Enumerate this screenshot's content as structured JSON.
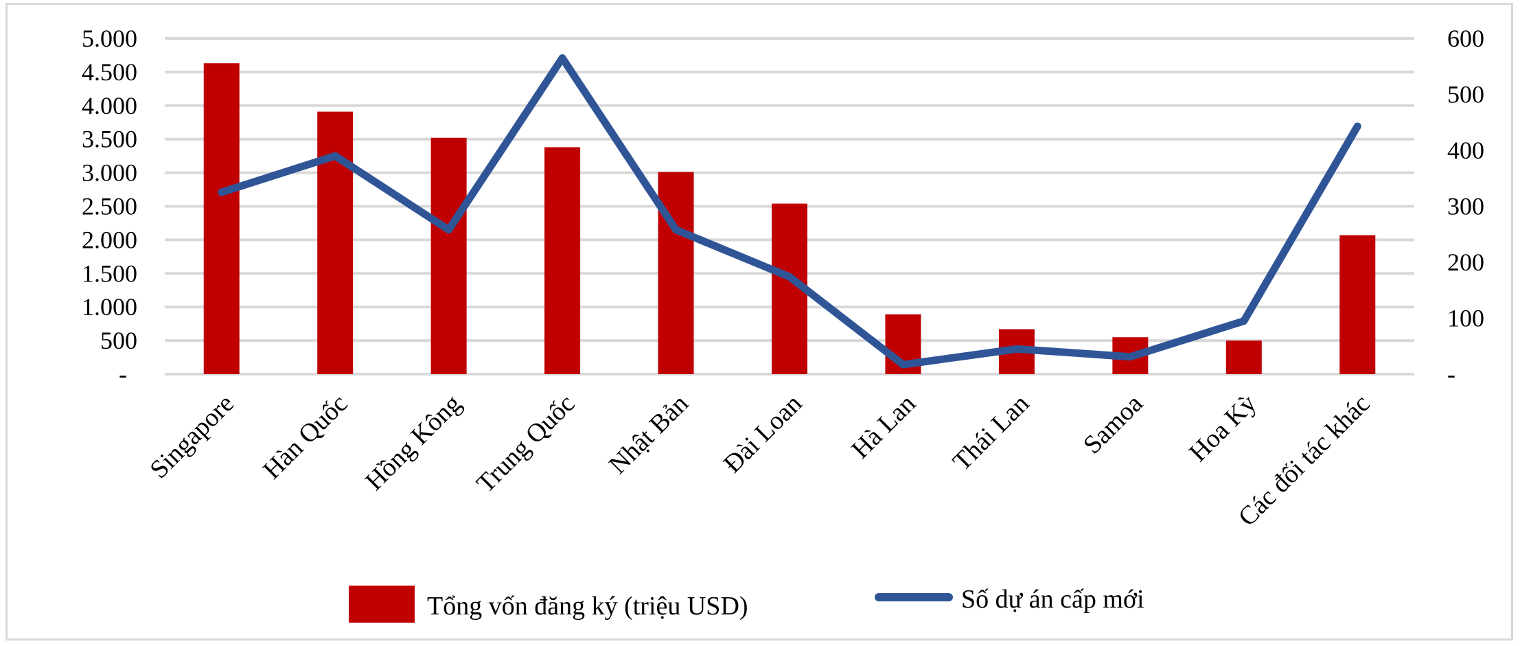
{
  "chart_data": {
    "type": "bar+line",
    "title": "",
    "categories": [
      "Singapore",
      "Hàn Quốc",
      "Hồng Kông",
      "Trung Quốc",
      "Nhật Bản",
      "Đài Loan",
      "Hà Lan",
      "Thái Lan",
      "Samoa",
      "Hoa Kỳ",
      "Các đối tác khác"
    ],
    "series": [
      {
        "name": "Tổng vốn đăng ký (triệu  USD)",
        "type": "bar",
        "axis": "left",
        "color": "#c00000",
        "values": [
          4630,
          3910,
          3520,
          3380,
          3010,
          2540,
          890,
          670,
          550,
          500,
          2070
        ]
      },
      {
        "name": "Số dự án cấp mới",
        "type": "line",
        "axis": "right",
        "color": "#2f5597",
        "values": [
          325,
          390,
          258,
          565,
          258,
          174,
          17,
          45,
          31,
          95,
          443
        ]
      }
    ],
    "left_axis": {
      "ylim": [
        0,
        5000
      ],
      "ticks": [
        "-",
        "500",
        "1.000",
        "1.500",
        "2.000",
        "2.500",
        "3.000",
        "3.500",
        "4.000",
        "4.500",
        "5.000"
      ]
    },
    "right_axis": {
      "ylim": [
        0,
        600
      ],
      "ticks": [
        "-",
        "100",
        "200",
        "300",
        "400",
        "500",
        "600"
      ]
    },
    "grid": true,
    "legend_position": "bottom"
  },
  "legend": {
    "bar_label": "Tổng vốn đăng ký (triệu  USD)",
    "line_label": "Số dự án cấp mới"
  }
}
